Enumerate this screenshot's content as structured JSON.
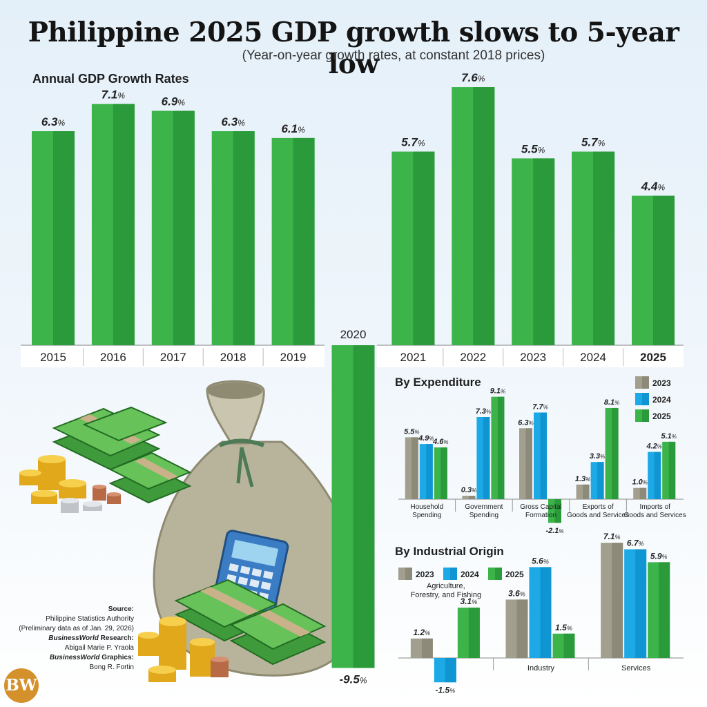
{
  "header": {
    "title": "Philippine 2025 GDP growth slows to 5-year low",
    "subtitle": "(Year-on-year growth rates, at constant 2018 prices)"
  },
  "colors": {
    "green": "#3cb44a",
    "green_dark": "#2b9a3a",
    "gray": "#a39f8e",
    "blue": "#1ca9e6",
    "bw_orange": "#d4902a"
  },
  "chart_data": [
    {
      "type": "bar",
      "title": "Annual GDP Growth Rates",
      "categories": [
        "2015",
        "2016",
        "2017",
        "2018",
        "2019",
        "2020",
        "2021",
        "2022",
        "2023",
        "2024",
        "2025"
      ],
      "values": [
        6.3,
        7.1,
        6.9,
        6.3,
        6.1,
        -9.5,
        5.7,
        7.6,
        5.5,
        5.7,
        4.4
      ],
      "labels": [
        "6.3",
        "7.1",
        "6.9",
        "6.3",
        "6.1",
        "-9.5",
        "5.7",
        "7.6",
        "5.5",
        "5.7",
        "4.4"
      ],
      "unit": "%"
    },
    {
      "type": "bar",
      "title": "By Expenditure",
      "categories": [
        "Household Spending",
        "Government Spending",
        "Gross Capital Formation",
        "Exports of Goods and Services",
        "Imports of Goods and Services"
      ],
      "series": [
        {
          "name": "2023",
          "values": [
            5.5,
            0.3,
            6.3,
            1.3,
            1.0
          ],
          "labels": [
            "5.5",
            "0.3",
            "6.3",
            "1.3",
            "1.0"
          ]
        },
        {
          "name": "2024",
          "values": [
            4.9,
            7.3,
            7.7,
            3.3,
            4.2
          ],
          "labels": [
            "4.9",
            "7.3",
            "7.7",
            "3.3",
            "4.2"
          ]
        },
        {
          "name": "2025",
          "values": [
            4.6,
            9.1,
            -2.1,
            8.1,
            5.1
          ],
          "labels": [
            "4.6",
            "9.1",
            "-2.1",
            "8.1",
            "5.1"
          ]
        }
      ],
      "unit": "%"
    },
    {
      "type": "bar",
      "title": "By Industrial Origin",
      "categories": [
        "Agriculture, Forestry, and Fishing",
        "Industry",
        "Services"
      ],
      "series": [
        {
          "name": "2023",
          "values": [
            1.2,
            3.6,
            7.1
          ],
          "labels": [
            "1.2",
            "3.6",
            "7.1"
          ]
        },
        {
          "name": "2024",
          "values": [
            -1.5,
            5.6,
            6.7
          ],
          "labels": [
            "-1.5",
            "5.6",
            "6.7"
          ]
        },
        {
          "name": "2025",
          "values": [
            3.1,
            1.5,
            5.9
          ],
          "labels": [
            "3.1",
            "1.5",
            "5.9"
          ]
        }
      ],
      "unit": "%"
    }
  ],
  "expenditure_category_lines": [
    [
      "Household",
      "Spending"
    ],
    [
      "Government",
      "Spending"
    ],
    [
      "Gross Capital",
      "Formation"
    ],
    [
      "Exports of",
      "Goods and Services"
    ],
    [
      "Imports of",
      "Goods and Services"
    ]
  ],
  "industry_category_lines": [
    [
      "Agriculture,",
      "Forestry, and Fishing"
    ],
    [
      "Industry"
    ],
    [
      "Services"
    ]
  ],
  "source": {
    "label": "Source:",
    "org": "Philippine Statistics Authority",
    "note": "(Preliminary data as of Jan. 29, 2026)",
    "research_brand": "BusinessWorld",
    "research_label": " Research:",
    "research_name": "Abigail Marie P. Yraola",
    "graphics_brand": "BusinessWorld",
    "graphics_label": " Graphics:",
    "graphics_name": "Bong R. Fortin"
  },
  "logo": {
    "text": "BW"
  }
}
